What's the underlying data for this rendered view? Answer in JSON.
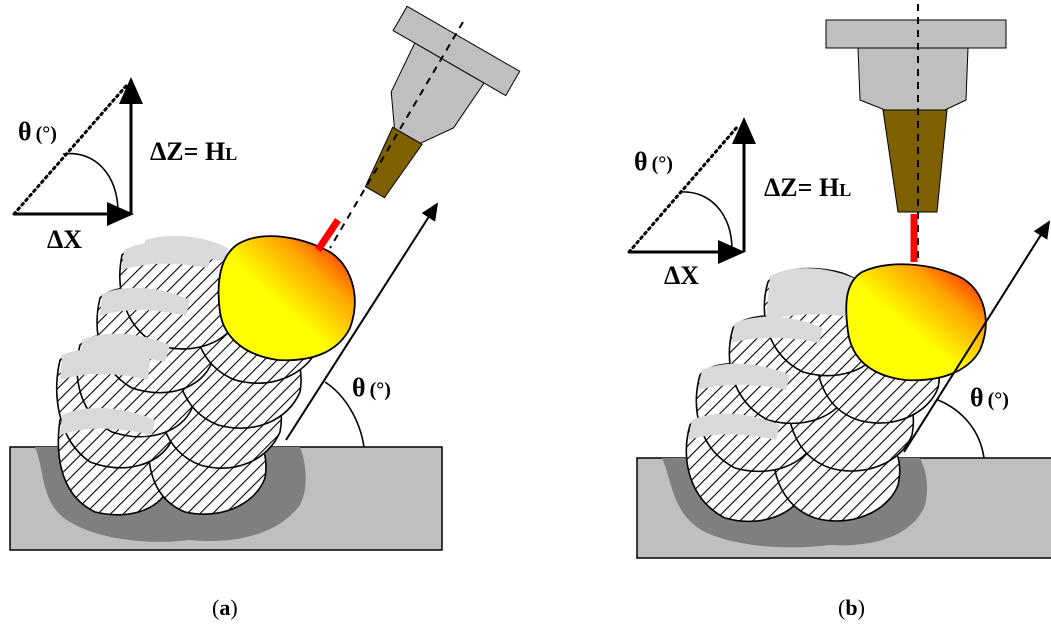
{
  "panels": [
    {
      "caption": {
        "open": "(",
        "letter": "a",
        "close": ")"
      },
      "theta_label": "θ",
      "degree_label": "(°)",
      "delta_z_label": "ΔZ= H",
      "delta_z_sub": "L",
      "delta_x_label": "ΔX",
      "build_theta_label": "θ",
      "build_degree_label": "(°)"
    },
    {
      "caption": {
        "open": "(",
        "letter": "b",
        "close": ")"
      },
      "theta_label": "θ",
      "degree_label": "(°)",
      "delta_z_label": "ΔZ= H",
      "delta_z_sub": "L",
      "delta_x_label": "ΔX",
      "build_theta_label": "θ",
      "build_degree_label": "(°)"
    }
  ],
  "colors": {
    "substrate": "#bfbfbf",
    "heat_affected_zone": "#7f7f7f",
    "bead_remelted": "#d9d9d9",
    "nozzle_body": "#bfbfbf",
    "nozzle_tip": "#7f6000",
    "laser": "#ff0000",
    "melt_pool_hot": "#ff0000",
    "melt_pool_warm": "#ffff00"
  }
}
